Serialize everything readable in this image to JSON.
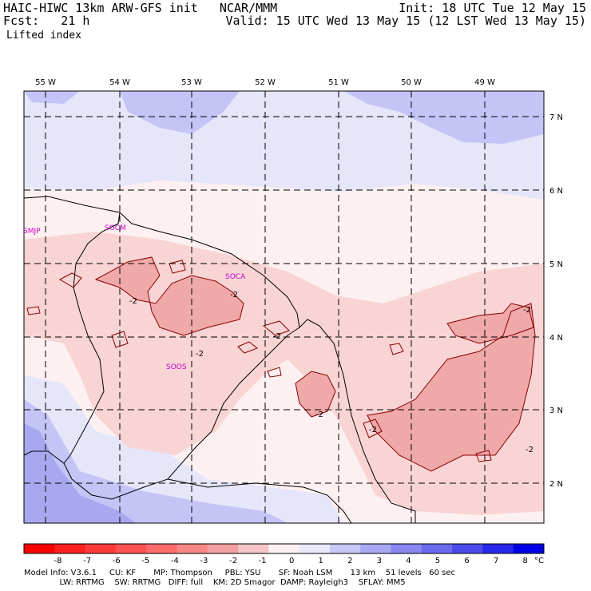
{
  "header": {
    "title": "HAIC-HIWC 13km ARW-GFS init   NCAR/MMM",
    "fcst": "Fcst:   21 h",
    "field": "Lifted index",
    "init": "Init: 18 UTC Tue 12 May 15",
    "valid": "Valid: 15 UTC Wed 13 May 15 (12 LST Wed 13 May 15)"
  },
  "map": {
    "lon_labels": [
      "55 W",
      "54 W",
      "53 W",
      "52 W",
      "51 W",
      "50 W",
      "49 W"
    ],
    "lat_labels": [
      "7 N",
      "6 N",
      "5 N",
      "4 N",
      "3 N",
      "2 N"
    ],
    "stations": [
      {
        "name": "SMJP"
      },
      {
        "name": "SOCM"
      },
      {
        "name": "SOCA"
      },
      {
        "name": "SOOS"
      }
    ],
    "contour_label": "-2",
    "colors": {
      "neutral": "#fdf0f0",
      "pos1": "#e6e6fa",
      "pos2": "#c4c4f6",
      "pos3": "#a8a8f0",
      "neg1": "#f9d4d4",
      "neg2": "#f0a9a9",
      "contour": "#8b0000"
    }
  },
  "colorbar": {
    "ticks": [
      "-8",
      "-7",
      "-6",
      "-5",
      "-4",
      "-3",
      "-2",
      "-1",
      "0",
      "1",
      "2",
      "3",
      "4",
      "5",
      "6",
      "7",
      "8"
    ],
    "unit": "°C",
    "colors": [
      "#ff0000",
      "#ff2020",
      "#ff3a3a",
      "#ff5252",
      "#fd6b6b",
      "#f98686",
      "#f5a0a0",
      "#f5c4c4",
      "#fcf0f0",
      "#e8e8fb",
      "#c8c8f8",
      "#a8a8f4",
      "#8888f0",
      "#6a6aee",
      "#4a4aec",
      "#2828ea",
      "#0000e8"
    ]
  },
  "footer": {
    "line1": "Model Info: V3.6.1     CU: KF       MP: Thompson     PBL: YSU       SF: Noah LSM       13 km    51 levels   60 sec",
    "line2": "              LW: RRTMG    SW: RRTMG   DIFF: full    KM: 2D Smagor  DAMP: Rayleigh3    SFLAY: MM5"
  }
}
